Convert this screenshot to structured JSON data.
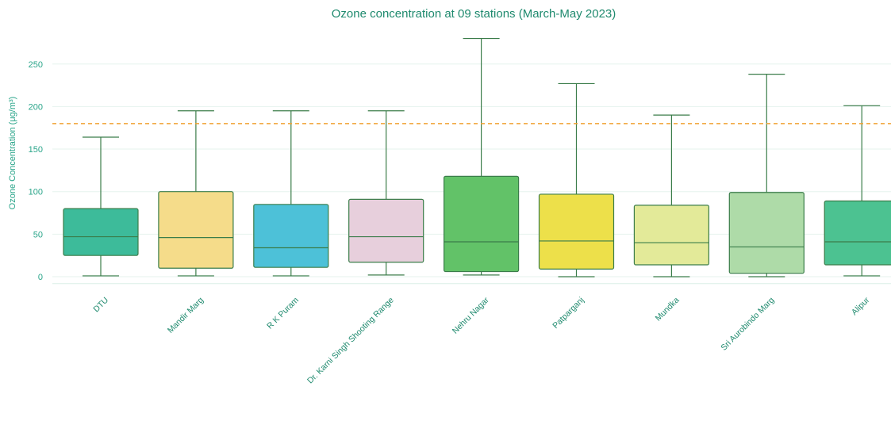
{
  "chart_data": {
    "type": "box",
    "title": "Ozone concentration at 09 stations (March-May 2023)",
    "ylabel": "Ozone Concentration (μg/m³)",
    "xlabel": "",
    "ylim": [
      -10,
      292
    ],
    "yticks": [
      0,
      50,
      100,
      150,
      200,
      250
    ],
    "grid": true,
    "reference_line": {
      "value": 180,
      "color": "#f0a030"
    },
    "categories": [
      "DTU",
      "Mandir Marg",
      "R K Puram",
      "Dr. Karni Singh Shooting Range",
      "Nehru Nagar",
      "Patparganj",
      "Mundka",
      "Sri Aurobindo Marg",
      "Alipur"
    ],
    "boxes": [
      {
        "min": 1,
        "q1": 25,
        "median": 47,
        "q3": 80,
        "max": 164,
        "color": "#3dbb9a"
      },
      {
        "min": 1,
        "q1": 10,
        "median": 46,
        "q3": 100,
        "max": 195,
        "color": "#f5dc8a"
      },
      {
        "min": 1,
        "q1": 11,
        "median": 34,
        "q3": 85,
        "max": 195,
        "color": "#4dc1d8"
      },
      {
        "min": 2,
        "q1": 17,
        "median": 47,
        "q3": 91,
        "max": 195,
        "color": "#e7cfdc"
      },
      {
        "min": 2,
        "q1": 6,
        "median": 41,
        "q3": 118,
        "max": 280,
        "color": "#62c268"
      },
      {
        "min": 0,
        "q1": 9,
        "median": 42,
        "q3": 97,
        "max": 227,
        "color": "#ede04a"
      },
      {
        "min": 0,
        "q1": 14,
        "median": 40,
        "q3": 84,
        "max": 190,
        "color": "#e3ea99"
      },
      {
        "min": 0,
        "q1": 4,
        "median": 35,
        "q3": 99,
        "max": 238,
        "color": "#aedba8"
      },
      {
        "min": 1,
        "q1": 14,
        "median": 41,
        "q3": 89,
        "max": 201,
        "color": "#4cc291"
      }
    ]
  }
}
